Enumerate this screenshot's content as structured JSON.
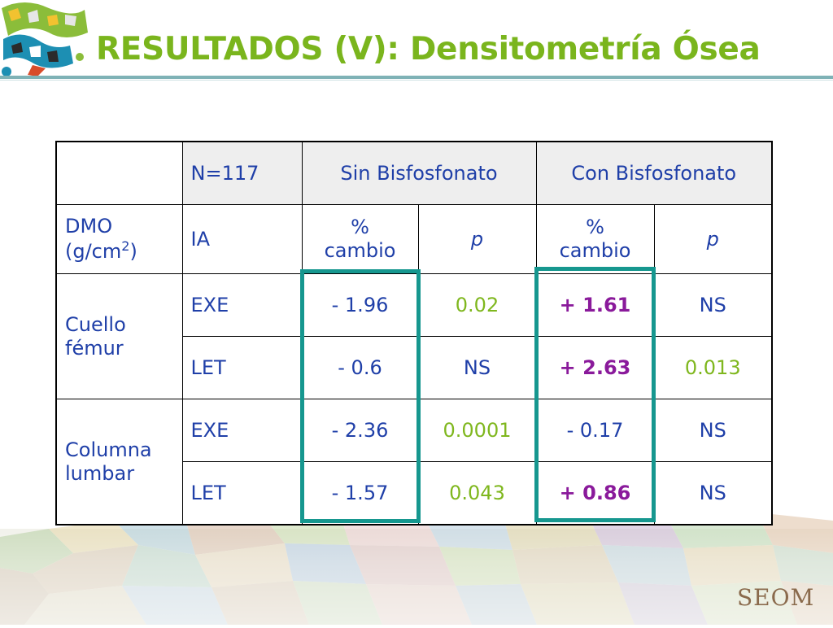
{
  "title": "RESULTADOS (V): Densitometría Ósea",
  "brand": "SEOM",
  "table": {
    "n_label": "N=117",
    "group1": "Sin Bisfosfonato",
    "group2": "Con Bisfosfonato",
    "dmo_label": "DMO",
    "dmo_unit": "(g/cm",
    "dmo_sup": "2",
    "dmo_close": ")",
    "ia_label": "IA",
    "pct_label": "%",
    "cambio_label": "cambio",
    "p_label": "p",
    "site1_line1": "Cuello",
    "site1_line2": "fémur",
    "site2_line1": "Columna",
    "site2_line2": "lumbar",
    "rows": [
      {
        "ia": "EXE",
        "sin_pct": "- 1.96",
        "sin_p": "0.02",
        "con_pct": "+ 1.61",
        "con_p": "NS"
      },
      {
        "ia": "LET",
        "sin_pct": "- 0.6",
        "sin_p": "NS",
        "con_pct": "+ 2.63",
        "con_p": "0.013"
      },
      {
        "ia": "EXE",
        "sin_pct": "- 2.36",
        "sin_p": "0.0001",
        "con_pct": "- 0.17",
        "con_p": "NS"
      },
      {
        "ia": "LET",
        "sin_pct": "- 1.57",
        "sin_p": "0.043",
        "con_pct": "+ 0.86",
        "con_p": "NS"
      }
    ]
  },
  "colors": {
    "title": "#7ab51d",
    "cell_text": "#1f3fa8",
    "significant_p": "#7fb71e",
    "positive_change": "#8a1a9b",
    "highlight_box": "#16978f",
    "header_rule": "#7fb2b6"
  }
}
